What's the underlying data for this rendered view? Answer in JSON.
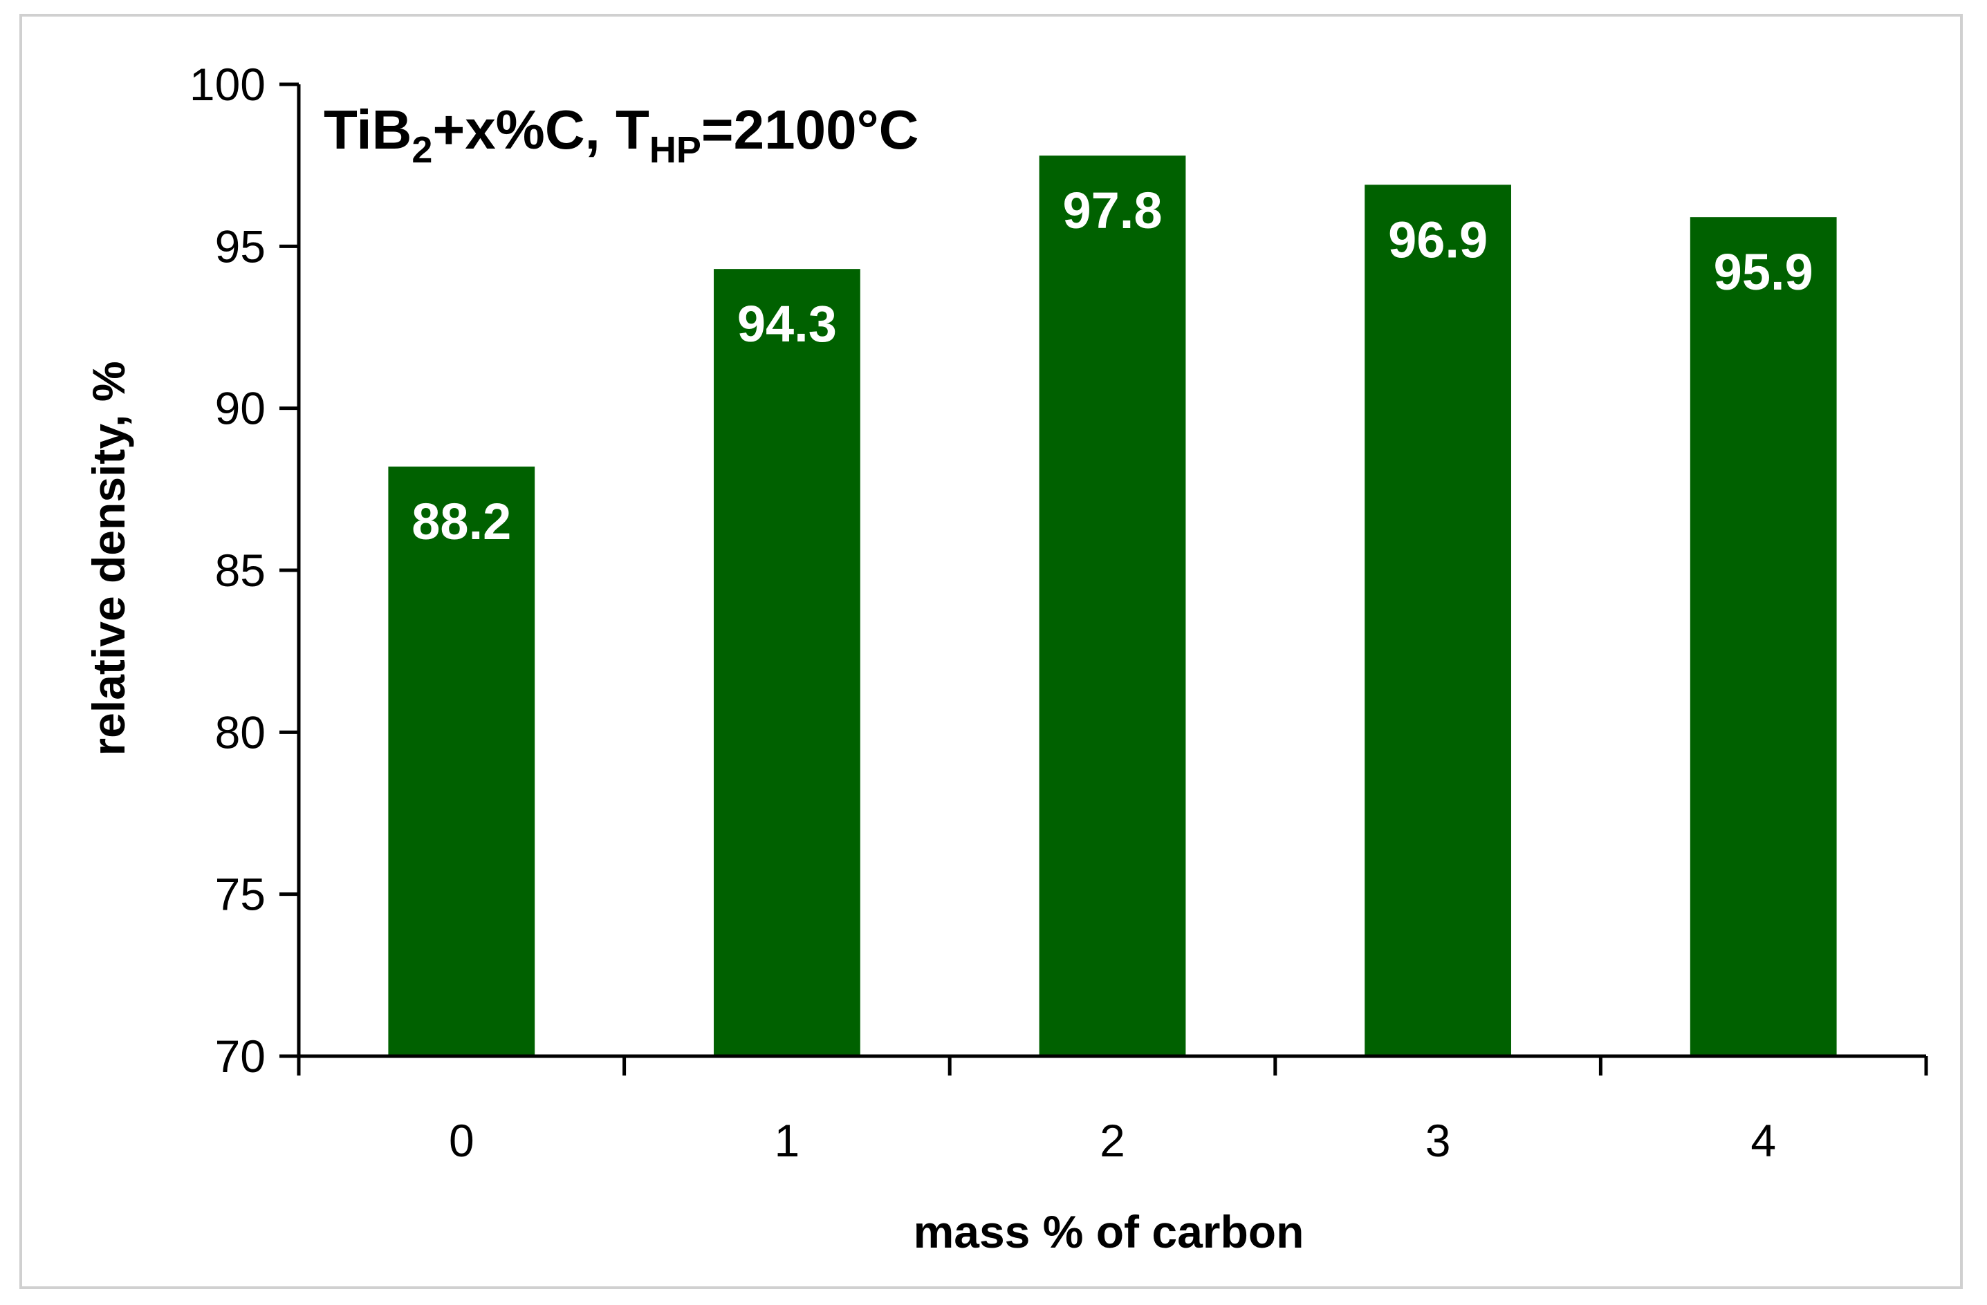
{
  "chart_data": {
    "type": "bar",
    "title": {
      "prefix": "TiB",
      "sub1": "2",
      "middle": "+x%C, T",
      "sub2": "HP",
      "suffix": "=2100°C"
    },
    "xlabel": "mass % of carbon",
    "ylabel": "relative density, %",
    "categories": [
      "0",
      "1",
      "2",
      "3",
      "4"
    ],
    "values": [
      88.2,
      94.3,
      97.8,
      96.9,
      95.9
    ],
    "data_labels": [
      "88.2",
      "94.3",
      "97.8",
      "96.9",
      "95.9"
    ],
    "ylim": [
      70,
      100
    ],
    "yticks": [
      70,
      75,
      80,
      85,
      90,
      95,
      100
    ],
    "ytick_labels": [
      "70",
      "75",
      "80",
      "85",
      "90",
      "95",
      "100"
    ],
    "grid": false,
    "legend": "none",
    "bar_color": "#006100"
  }
}
